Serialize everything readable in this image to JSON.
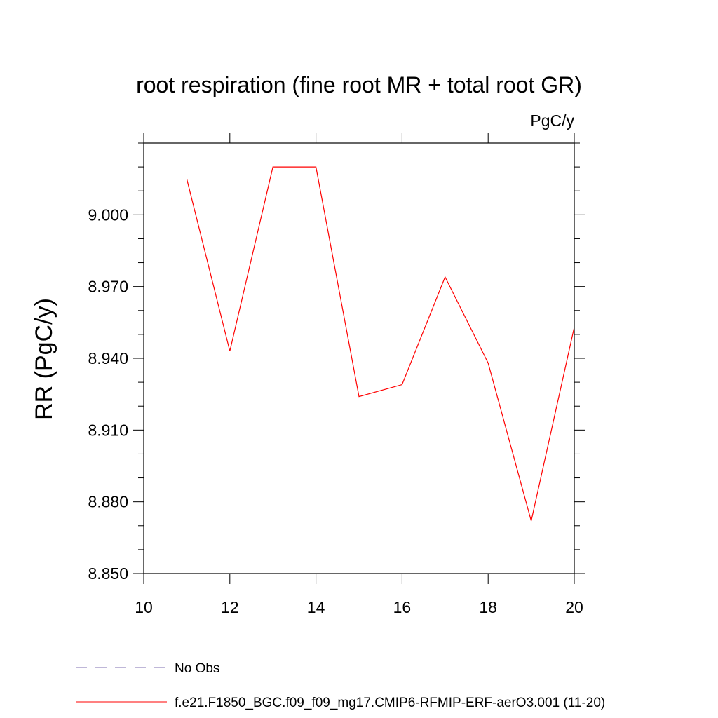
{
  "chart_data": {
    "type": "line",
    "title": "root respiration (fine root MR + total root GR)",
    "units_label": "PgC/y",
    "ylabel": "RR  (PgC/y)",
    "xlabel": "",
    "xlim": [
      10,
      20
    ],
    "ylim": [
      8.85,
      9.03
    ],
    "x_ticks": [
      10,
      12,
      14,
      16,
      18,
      20
    ],
    "x_tick_labels": [
      "10",
      "12",
      "14",
      "16",
      "18",
      "20"
    ],
    "y_ticks": [
      8.85,
      8.88,
      8.91,
      8.94,
      8.97,
      9.0
    ],
    "y_tick_labels": [
      "8.850",
      "8.880",
      "8.910",
      "8.940",
      "8.970",
      "9.000"
    ],
    "grid": false,
    "legend_position": "bottom",
    "series": [
      {
        "name": "f.e21.F1850_BGC.f09_f09_mg17.CMIP6-RFMIP-ERF-aerO3.001 (11-20)",
        "color": "#ff0000",
        "x": [
          11,
          12,
          13,
          14,
          15,
          16,
          17,
          18,
          19,
          20
        ],
        "y": [
          9.015,
          8.943,
          9.02,
          9.02,
          8.924,
          8.929,
          8.974,
          8.938,
          8.872,
          8.953
        ]
      }
    ],
    "legend": [
      {
        "label": "No Obs",
        "color": "#7f6fb0",
        "style": "dashed"
      },
      {
        "label": "f.e21.F1850_BGC.f09_f09_mg17.CMIP6-RFMIP-ERF-aerO3.001 (11-20)",
        "color": "#ff0000",
        "style": "solid"
      }
    ]
  }
}
